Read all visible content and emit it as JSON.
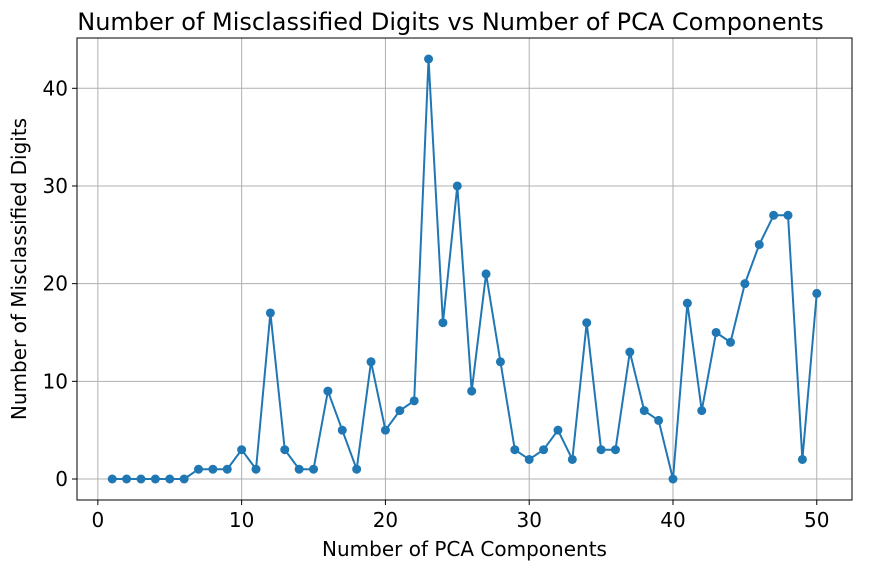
{
  "chart_data": {
    "type": "line",
    "title": "Number of Misclassified Digits vs Number of PCA Components",
    "xlabel": "Number of PCA Components",
    "ylabel": "Number of Misclassified Digits",
    "xlim": [
      -1.45,
      52.45
    ],
    "ylim": [
      -2.15,
      45.15
    ],
    "xticks": [
      0,
      10,
      20,
      30,
      40,
      50
    ],
    "yticks": [
      0,
      10,
      20,
      30,
      40
    ],
    "grid": true,
    "legend": "none",
    "series": [
      {
        "color": "#1f77b4",
        "marker": "circle",
        "x": [
          1,
          2,
          3,
          4,
          5,
          6,
          7,
          8,
          9,
          10,
          11,
          12,
          13,
          14,
          15,
          16,
          17,
          18,
          19,
          20,
          21,
          22,
          23,
          24,
          25,
          26,
          27,
          28,
          29,
          30,
          31,
          32,
          33,
          34,
          35,
          36,
          37,
          38,
          39,
          40,
          41,
          42,
          43,
          44,
          45,
          46,
          47,
          48,
          49,
          50
        ],
        "y": [
          0,
          0,
          0,
          0,
          0,
          0,
          1,
          1,
          1,
          3,
          1,
          17,
          3,
          1,
          1,
          9,
          5,
          1,
          12,
          5,
          7,
          8,
          43,
          16,
          30,
          9,
          21,
          12,
          3,
          2,
          3,
          5,
          2,
          16,
          3,
          3,
          13,
          7,
          6,
          0,
          18,
          7,
          15,
          14,
          20,
          24,
          27,
          27,
          2,
          19
        ]
      }
    ]
  }
}
